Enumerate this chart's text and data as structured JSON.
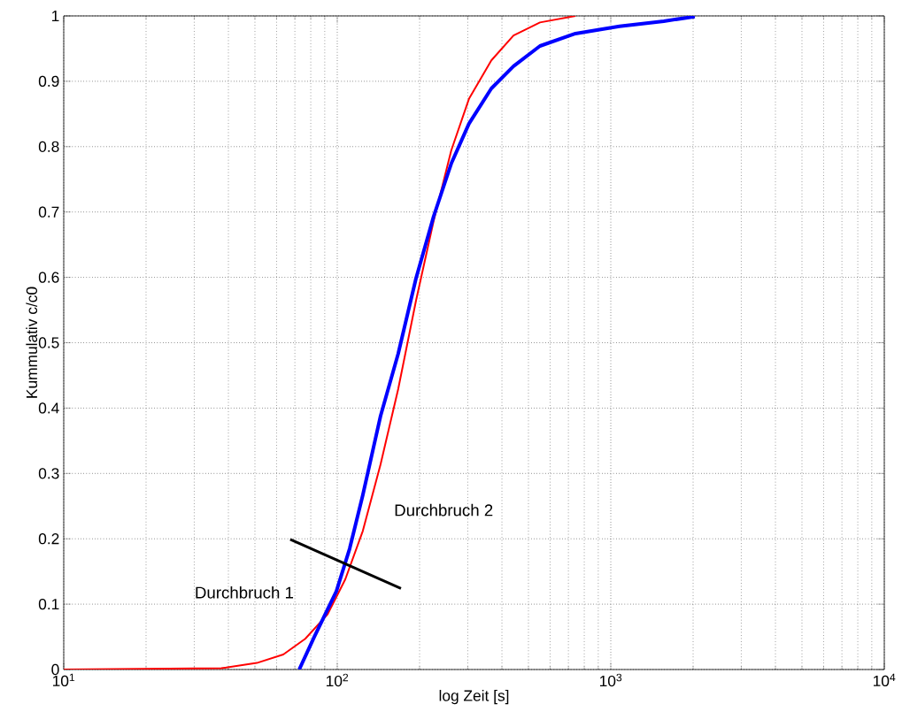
{
  "chart_data": {
    "type": "line",
    "xlabel": "log Zeit [s]",
    "ylabel": "Kummulativ c/c0",
    "log": "x",
    "grid": true,
    "xlim": [
      10,
      10000
    ],
    "xticks": [
      {
        "value": 10,
        "label": "10$^{1}$"
      },
      {
        "value": 100,
        "label": "10$^{2}$"
      },
      {
        "value": 1000,
        "label": "10$^{3}$"
      },
      {
        "value": 10000,
        "label": "10$^{4}$"
      }
    ],
    "ylim": [
      0,
      1
    ],
    "yticks": [
      0,
      0.1,
      0.2,
      0.3,
      0.4,
      0.5,
      0.6,
      0.7,
      0.8,
      0.9,
      1
    ],
    "series": [
      {
        "color": "#ff0000",
        "x": [
          10,
          37.7,
          50.8,
          63.5,
          76.4,
          92,
          107,
          124,
          144,
          167,
          194,
          225,
          261,
          303,
          366,
          441,
          551,
          743
        ],
        "values": [
          0,
          0.002,
          0.01,
          0.023,
          0.047,
          0.084,
          0.138,
          0.212,
          0.314,
          0.429,
          0.564,
          0.686,
          0.794,
          0.873,
          0.932,
          0.97,
          0.99,
          1.0
        ]
      },
      {
        "color": "#0000ff",
        "x": [
          72.6,
          82.4,
          99.3,
          111,
          124,
          144,
          167,
          194,
          225,
          261,
          303,
          366,
          441,
          551,
          743,
          1076,
          1563,
          2028
        ],
        "values": [
          0,
          0.05,
          0.12,
          0.185,
          0.267,
          0.388,
          0.483,
          0.598,
          0.693,
          0.774,
          0.835,
          0.889,
          0.923,
          0.954,
          0.973,
          0.984,
          0.992,
          0.999
        ]
      },
      {
        "color": "#000000",
        "x": [
          67.3,
          171
        ],
        "values": [
          0.199,
          0.124
        ]
      }
    ],
    "annotations": [
      "Durchbruch 1",
      "Durchbruch 2"
    ]
  }
}
